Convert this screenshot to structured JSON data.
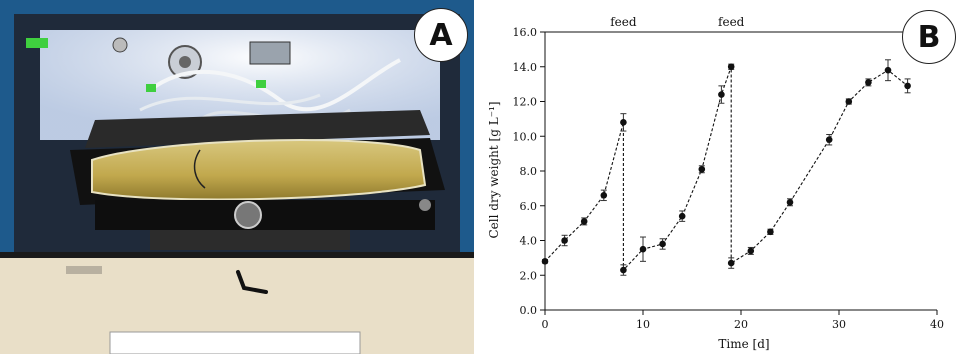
{
  "figure": {
    "panel_a_label": "A",
    "panel_b_label": "B",
    "photo_description": "Rocking-motion single-use bag bioreactor with tubing and sensors, holding yellow culture broth"
  },
  "chart_data": {
    "type": "scatter",
    "title": "",
    "xlabel": "Time  [d]",
    "ylabel": "Cell  dry weight  [g L⁻¹]",
    "xlim": [
      0,
      40
    ],
    "ylim": [
      0,
      16
    ],
    "xticks": [
      "0",
      "10",
      "20",
      "30",
      "40"
    ],
    "yticks": [
      "0.0",
      "2.0",
      "4.0",
      "6.0",
      "8.0",
      "10.0",
      "12.0",
      "14.0",
      "16.0"
    ],
    "grid": false,
    "line_style": "dashed",
    "annotations": [
      {
        "text": "feed",
        "x": 8
      },
      {
        "text": "feed",
        "x": 19
      }
    ],
    "series": [
      {
        "x": [
          0,
          2,
          4,
          6,
          8,
          8,
          10,
          12,
          14,
          16,
          18,
          19,
          19,
          21,
          23,
          25,
          29,
          31,
          33,
          35,
          37
        ],
        "y": [
          2.8,
          4.0,
          5.1,
          6.6,
          10.8,
          2.3,
          3.5,
          3.8,
          5.4,
          8.1,
          12.4,
          14.0,
          2.7,
          3.4,
          4.5,
          6.2,
          9.8,
          12.0,
          13.1,
          13.8,
          12.9
        ],
        "yerr": [
          0.1,
          0.3,
          0.2,
          0.3,
          0.5,
          0.3,
          0.7,
          0.3,
          0.3,
          0.2,
          0.5,
          0.15,
          0.3,
          0.2,
          0.15,
          0.2,
          0.3,
          0.15,
          0.2,
          0.6,
          0.4
        ]
      }
    ]
  }
}
